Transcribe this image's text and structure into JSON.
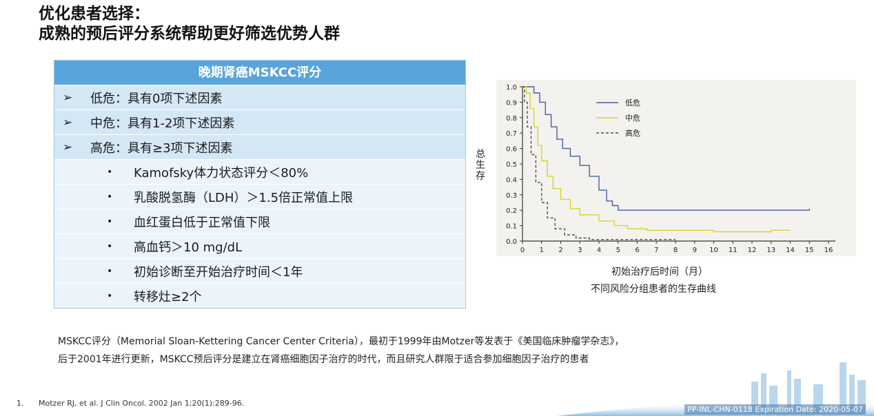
{
  "title": {
    "line1": "优化患者选择：",
    "line2": "成熟的预后评分系统帮助更好筛选优势人群"
  },
  "table": {
    "header": "晚期肾癌MSKCC评分",
    "arrow_glyph": "➢",
    "bullet_glyph": "•",
    "risk_rows": [
      "低危：具有0项下述因素",
      "中危：具有1-2项下述因素",
      "高危：具有≥3项下述因素"
    ],
    "factor_rows": [
      "Kamofsky体力状态评分＜80%",
      "乳酸脱氢酶（LDH）＞1.5倍正常值上限",
      "血红蛋白低于正常值下限",
      "高血钙＞10 mg/dL",
      "初始诊断至开始治疗时间＜1年",
      "转移灶≥2个"
    ]
  },
  "chart_data": {
    "type": "line",
    "ylabel": "总生存",
    "xlabel": "初始治疗后时间（月）",
    "caption": "不同风险分组患者的生存曲线",
    "xlim": [
      0,
      16
    ],
    "ylim": [
      0,
      1
    ],
    "x_ticks": [
      "0",
      "1",
      "2",
      "3",
      "4",
      "5",
      "6",
      "7",
      "8",
      "9",
      "10",
      "11",
      "12",
      "13",
      "14",
      "15",
      "16"
    ],
    "y_ticks": [
      "0.0",
      "0.1",
      "0.2",
      "0.3",
      "0.4",
      "0.5",
      "0.6",
      "0.7",
      "0.8",
      "0.9",
      "1.0"
    ],
    "legend_position": "top-center",
    "series": [
      {
        "name": "低危",
        "color": "#4a5aa8",
        "dash": "solid",
        "points": [
          [
            0,
            1.0
          ],
          [
            0.3,
            1.0
          ],
          [
            0.6,
            0.96
          ],
          [
            0.9,
            0.9
          ],
          [
            1.2,
            0.82
          ],
          [
            1.5,
            0.74
          ],
          [
            1.8,
            0.66
          ],
          [
            2.1,
            0.6
          ],
          [
            2.5,
            0.55
          ],
          [
            3.0,
            0.49
          ],
          [
            3.5,
            0.42
          ],
          [
            4.0,
            0.33
          ],
          [
            4.4,
            0.26
          ],
          [
            4.7,
            0.23
          ],
          [
            5.0,
            0.2
          ],
          [
            6.0,
            0.2
          ],
          [
            8.0,
            0.2
          ],
          [
            10.0,
            0.2
          ],
          [
            12.0,
            0.2
          ],
          [
            14.0,
            0.2
          ],
          [
            15.0,
            0.21
          ]
        ]
      },
      {
        "name": "中危",
        "color": "#d8d22a",
        "dash": "solid",
        "points": [
          [
            0,
            1.0
          ],
          [
            0.2,
            0.96
          ],
          [
            0.4,
            0.86
          ],
          [
            0.6,
            0.74
          ],
          [
            0.8,
            0.62
          ],
          [
            1.0,
            0.52
          ],
          [
            1.3,
            0.42
          ],
          [
            1.6,
            0.34
          ],
          [
            2.0,
            0.27
          ],
          [
            2.5,
            0.21
          ],
          [
            3.0,
            0.17
          ],
          [
            4.0,
            0.13
          ],
          [
            4.8,
            0.1
          ],
          [
            5.5,
            0.08
          ],
          [
            6.5,
            0.07
          ],
          [
            8.0,
            0.07
          ],
          [
            10.0,
            0.06
          ],
          [
            12.0,
            0.06
          ],
          [
            13.0,
            0.07
          ],
          [
            14.0,
            0.07
          ]
        ]
      },
      {
        "name": "高危",
        "color": "#4a4a4a",
        "dash": "dashed",
        "points": [
          [
            0,
            1.0
          ],
          [
            0.1,
            0.9
          ],
          [
            0.25,
            0.74
          ],
          [
            0.45,
            0.56
          ],
          [
            0.7,
            0.38
          ],
          [
            1.0,
            0.25
          ],
          [
            1.3,
            0.15
          ],
          [
            1.7,
            0.08
          ],
          [
            2.2,
            0.04
          ],
          [
            2.8,
            0.02
          ],
          [
            3.5,
            0.01
          ],
          [
            5.0,
            0.01
          ],
          [
            7.0,
            0.01
          ],
          [
            8.0,
            0.01
          ]
        ]
      }
    ]
  },
  "description": {
    "line1": "MSKCC评分（Memorial Sloan-Kettering Cancer Center Criteria），最初于1999年由Motzer等发表于《美国临床肿瘤学杂志》，",
    "line2": "后于2001年进行更新，MSKCC预后评分是建立在肾癌细胞因子治疗的时代，而且研究人群限于适合参加细胞因子治疗的患者"
  },
  "reference": {
    "number": "1.",
    "text": "Motzer RJ, et al. J Clin Oncol. 2002 Jan 1;20(1):289-96."
  },
  "footer": {
    "code": "PP-INL-CHN-0118 Expiration Date: 2020-05-07"
  }
}
